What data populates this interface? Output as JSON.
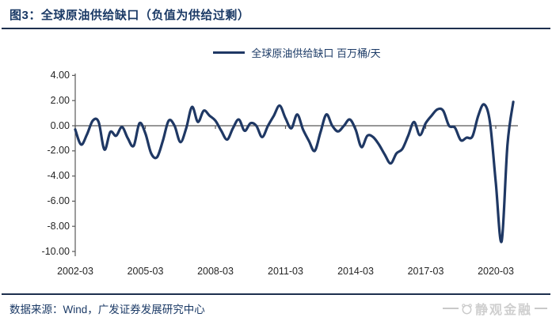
{
  "header": {
    "title": "图3：全球原油供给缺口（负值为供给过剩）"
  },
  "legend": {
    "label": "全球原油供给缺口 百万桶/天"
  },
  "footer": {
    "source": "数据来源：Wind，广发证券发展研究中心",
    "watermark": "静观金融"
  },
  "colors": {
    "accent_navy": "#1b3a66",
    "series_line": "#1f3864",
    "axis_line": "#595959",
    "tick_text": "#262626",
    "watermark_gray": "#c9c9c9"
  },
  "chart_data": {
    "type": "line",
    "title": "全球原油供给缺口（负值为供给过剩）",
    "series": [
      {
        "name": "全球原油供给缺口 百万桶/天"
      }
    ],
    "unit": "百万桶/天",
    "ylim": [
      -10,
      4
    ],
    "ytick_step": 2,
    "grid": false,
    "legend_position": "top-center",
    "ytick_labels": [
      "4.00",
      "2.00",
      "0.00",
      "-2.00",
      "-4.00",
      "-6.00",
      "-8.00",
      "-10.00"
    ],
    "xtick_labels": [
      "2002-03",
      "2005-03",
      "2008-03",
      "2011-03",
      "2014-03",
      "2017-03",
      "2020-03"
    ],
    "x": [
      "2002-03",
      "2002-06",
      "2002-09",
      "2002-12",
      "2003-03",
      "2003-06",
      "2003-09",
      "2003-12",
      "2004-03",
      "2004-06",
      "2004-09",
      "2004-12",
      "2005-03",
      "2005-06",
      "2005-09",
      "2005-12",
      "2006-03",
      "2006-06",
      "2006-09",
      "2006-12",
      "2007-03",
      "2007-06",
      "2007-09",
      "2007-12",
      "2008-03",
      "2008-06",
      "2008-09",
      "2008-12",
      "2009-03",
      "2009-06",
      "2009-09",
      "2009-12",
      "2010-03",
      "2010-06",
      "2010-09",
      "2010-12",
      "2011-03",
      "2011-06",
      "2011-09",
      "2011-12",
      "2012-03",
      "2012-06",
      "2012-09",
      "2012-12",
      "2013-03",
      "2013-06",
      "2013-09",
      "2013-12",
      "2014-03",
      "2014-06",
      "2014-09",
      "2014-12",
      "2015-03",
      "2015-06",
      "2015-09",
      "2015-12",
      "2016-03",
      "2016-06",
      "2016-09",
      "2016-12",
      "2017-03",
      "2017-06",
      "2017-09",
      "2017-12",
      "2018-03",
      "2018-06",
      "2018-09",
      "2018-12",
      "2019-03",
      "2019-06",
      "2019-09",
      "2019-12",
      "2020-03",
      "2020-06",
      "2020-09",
      "2020-12"
    ],
    "values": [
      -0.3,
      -1.5,
      -0.7,
      0.4,
      0.3,
      -1.9,
      -0.5,
      -0.8,
      -0.1,
      -1.0,
      -1.6,
      0.2,
      -0.6,
      -2.2,
      -2.5,
      -1.2,
      0.4,
      0.0,
      -1.3,
      -0.2,
      1.5,
      0.3,
      1.2,
      0.8,
      0.4,
      -0.4,
      -1.1,
      -0.2,
      0.5,
      -0.4,
      0.2,
      0.0,
      -0.9,
      0.0,
      0.8,
      1.6,
      0.6,
      -0.2,
      0.9,
      -0.3,
      -1.2,
      -2.0,
      -0.5,
      0.9,
      0.0,
      -0.45,
      0.0,
      0.5,
      -0.3,
      -1.7,
      -0.8,
      -0.9,
      -1.5,
      -2.3,
      -3.0,
      -2.2,
      -1.85,
      -0.8,
      0.3,
      -0.75,
      0.2,
      0.8,
      1.3,
      1.2,
      0.0,
      -0.15,
      -1.15,
      -0.95,
      -0.85,
      0.8,
      1.7,
      0.3,
      -4.5,
      -9.2,
      -1.5,
      1.9
    ]
  }
}
